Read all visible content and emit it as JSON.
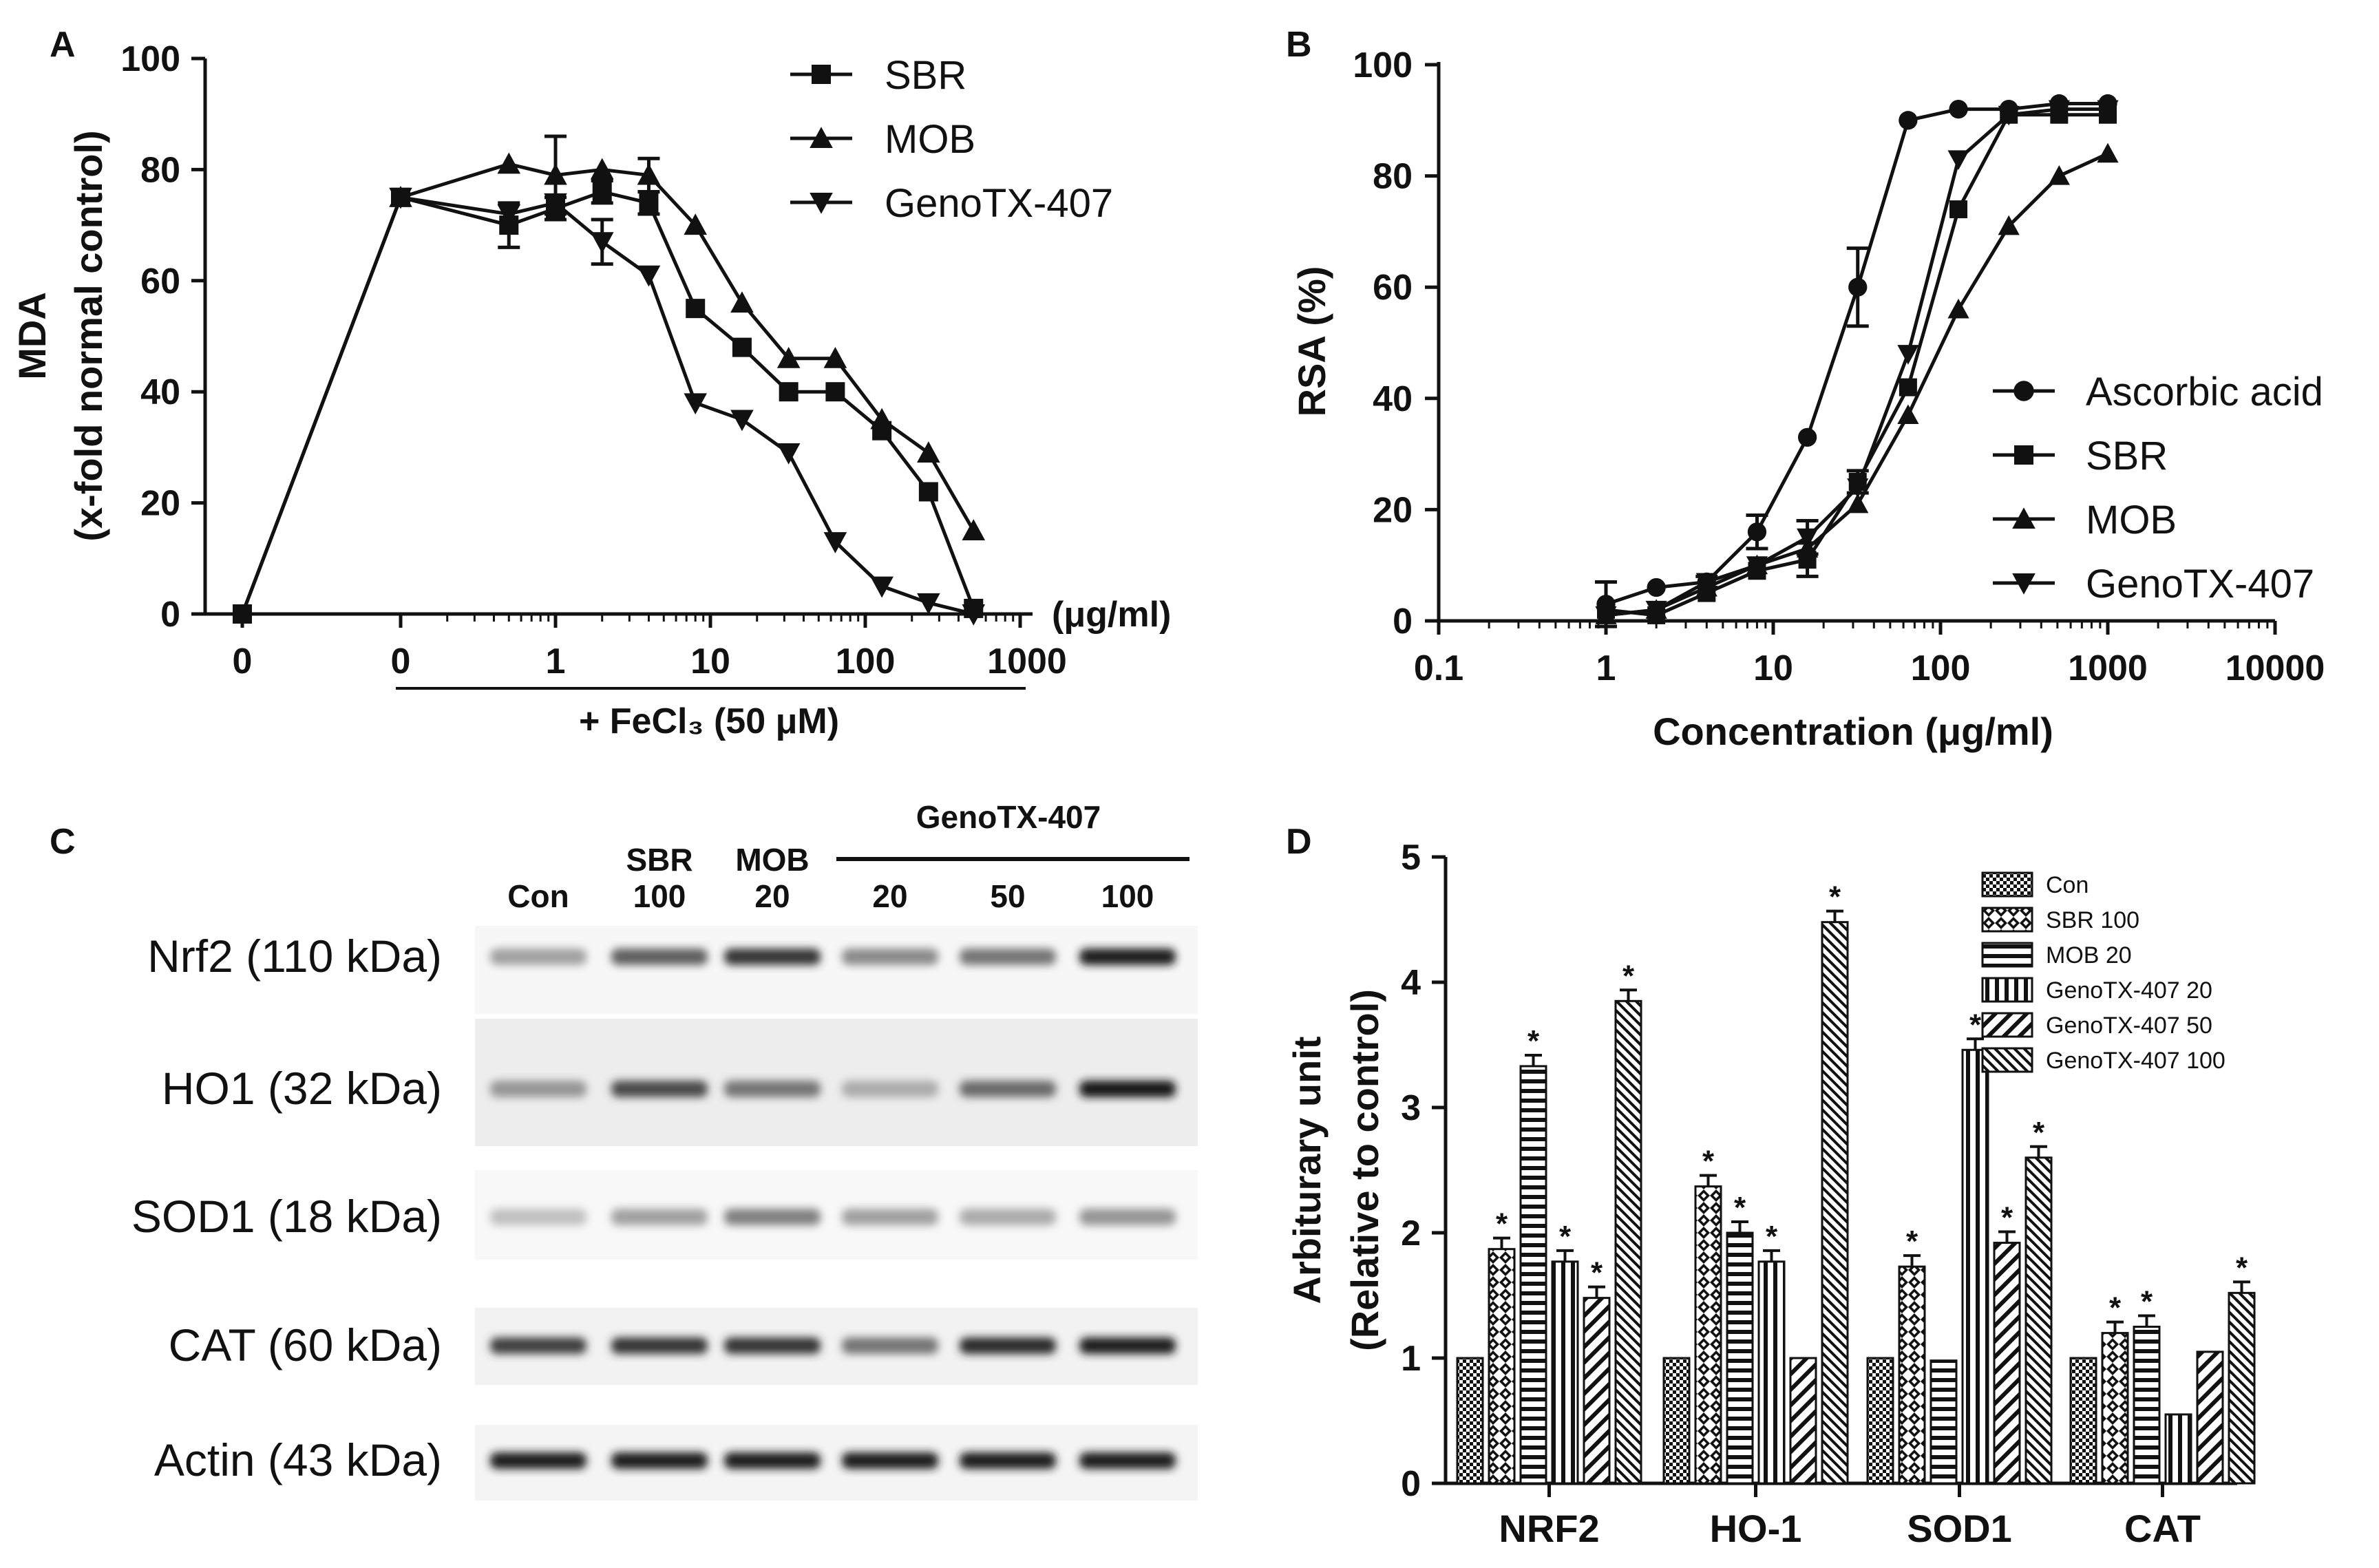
{
  "panels": {
    "A": {
      "letter": "A"
    },
    "B": {
      "letter": "B"
    },
    "C": {
      "letter": "C"
    },
    "D": {
      "letter": "D"
    }
  },
  "chart_data": [
    {
      "id": "A",
      "type": "line",
      "ylabel_line1": "MDA",
      "ylabel_line2": "(x-fold normal control)",
      "yticks": [
        "0",
        "20",
        "40",
        "60",
        "80",
        "100"
      ],
      "ylim": [
        0,
        100
      ],
      "x_unit": "(μg/ml)",
      "x_first_tick": "0",
      "x_log_ticks": [
        "0",
        "1",
        "10",
        "100",
        "1000"
      ],
      "bracket_label": "+ FeCl₃ (50 μM)",
      "control_point": {
        "x": "0",
        "y": 0
      },
      "series": [
        {
          "name": "SBR",
          "marker": "square",
          "x": [
            0.1,
            0.5,
            1,
            2,
            4,
            8,
            16,
            32,
            64,
            128,
            256,
            500
          ],
          "y": [
            75,
            70,
            73,
            76,
            74,
            55,
            48,
            40,
            40,
            33,
            22,
            1
          ],
          "err": [
            0,
            4,
            2,
            2,
            2,
            0,
            0,
            0,
            0,
            0,
            0,
            0
          ]
        },
        {
          "name": "MOB",
          "marker": "triangle-up",
          "x": [
            0.1,
            0.5,
            1,
            2,
            4,
            8,
            16,
            32,
            64,
            128,
            256,
            500
          ],
          "y": [
            75,
            81,
            79,
            80,
            79,
            70,
            56,
            46,
            46,
            35,
            29,
            15
          ],
          "err": [
            0,
            0,
            7,
            0,
            3,
            0,
            0,
            0,
            0,
            0,
            0,
            0
          ]
        },
        {
          "name": "GenoTX-407",
          "marker": "triangle-down",
          "x": [
            0.1,
            0.5,
            1,
            2,
            4,
            8,
            16,
            32,
            64,
            128,
            256,
            500
          ],
          "y": [
            75,
            72,
            74,
            67,
            61,
            38,
            35,
            29,
            13,
            5,
            2,
            0
          ],
          "err": [
            0,
            0,
            0,
            4,
            0,
            0,
            0,
            0,
            0,
            0,
            0,
            0
          ]
        }
      ]
    },
    {
      "id": "B",
      "type": "line",
      "ylabel": "RSA (%)",
      "xlabel": "Concentration (μg/ml)",
      "yticks": [
        "0",
        "20",
        "40",
        "60",
        "80",
        "100"
      ],
      "xticks": [
        "0.1",
        "1",
        "10",
        "100",
        "1000",
        "10000"
      ],
      "ylim": [
        0,
        100
      ],
      "xlim": [
        0.1,
        10000
      ],
      "xscale": "log",
      "series": [
        {
          "name": "Ascorbic acid",
          "marker": "circle",
          "x": [
            1,
            2,
            4,
            8,
            16,
            32,
            64,
            128,
            256,
            512,
            1000
          ],
          "y": [
            3,
            6,
            7,
            16,
            33,
            60,
            90,
            92,
            92,
            93,
            93
          ],
          "err": [
            4,
            0,
            1,
            3,
            0,
            7,
            0,
            0,
            0,
            0,
            0
          ]
        },
        {
          "name": "SBR",
          "marker": "square",
          "x": [
            1,
            2,
            4,
            8,
            16,
            32,
            64,
            128,
            256,
            512,
            1000
          ],
          "y": [
            2,
            1,
            5,
            9,
            11,
            25,
            42,
            74,
            91,
            91,
            91
          ],
          "err": [
            0,
            0,
            0,
            0,
            3,
            2,
            0,
            0,
            0,
            0,
            0
          ]
        },
        {
          "name": "MOB",
          "marker": "triangle-up",
          "x": [
            1,
            2,
            4,
            8,
            16,
            32,
            64,
            128,
            256,
            512,
            1000
          ],
          "y": [
            1,
            2,
            6,
            10,
            13,
            21,
            37,
            56,
            71,
            80,
            84
          ],
          "err": [
            0,
            0,
            0,
            0,
            0,
            0,
            0,
            0,
            0,
            0,
            0
          ]
        },
        {
          "name": "GenoTX-407",
          "marker": "triangle-down",
          "x": [
            1,
            2,
            4,
            8,
            16,
            32,
            64,
            128,
            256,
            512,
            1000
          ],
          "y": [
            1,
            2,
            7,
            10,
            15,
            24,
            48,
            83,
            91,
            92,
            92
          ],
          "err": [
            0,
            0,
            0,
            0,
            3,
            0,
            0,
            0,
            0,
            0,
            0
          ]
        }
      ]
    },
    {
      "id": "D",
      "type": "bar",
      "ylabel_line1": "Arbiturary unit",
      "ylabel_line2": "(Relative to control)",
      "yticks": [
        "0",
        "1",
        "2",
        "3",
        "4",
        "5"
      ],
      "ylim": [
        0,
        5
      ],
      "categories": [
        "NRF2",
        "HO-1",
        "SOD1",
        "CAT"
      ],
      "significance_mark": "*",
      "series": [
        {
          "name": "Con",
          "pattern": "checker",
          "values": [
            1.0,
            1.0,
            1.0,
            1.0
          ],
          "sig": [
            false,
            false,
            false,
            false
          ]
        },
        {
          "name": "SBR 100",
          "pattern": "diamond",
          "values": [
            1.87,
            2.37,
            1.73,
            1.2
          ],
          "sig": [
            true,
            true,
            true,
            true
          ]
        },
        {
          "name": "MOB 20",
          "pattern": "hlines",
          "values": [
            3.33,
            2.0,
            0.98,
            1.25
          ],
          "sig": [
            true,
            true,
            false,
            true
          ]
        },
        {
          "name": "GenoTX-407 20",
          "pattern": "vlines",
          "values": [
            1.77,
            1.77,
            3.46,
            0.55
          ],
          "sig": [
            true,
            true,
            true,
            false
          ]
        },
        {
          "name": "GenoTX-407 50",
          "pattern": "diag",
          "values": [
            1.48,
            1.0,
            1.92,
            1.05
          ],
          "sig": [
            true,
            false,
            true,
            false
          ]
        },
        {
          "name": "GenoTX-407 100",
          "pattern": "diag-dense",
          "values": [
            3.85,
            4.48,
            2.6,
            1.52
          ],
          "sig": [
            true,
            true,
            true,
            true
          ]
        }
      ]
    }
  ],
  "blot": {
    "group_label": "GenoTX-407",
    "lanes": [
      {
        "top": "",
        "bottom": "Con"
      },
      {
        "top": "SBR",
        "bottom": "100"
      },
      {
        "top": "MOB",
        "bottom": "20"
      },
      {
        "top": "",
        "bottom": "20"
      },
      {
        "top": "",
        "bottom": "50"
      },
      {
        "top": "",
        "bottom": "100"
      }
    ],
    "rows": [
      {
        "label": "Nrf2 (110 kDa)",
        "intensity": [
          0.35,
          0.65,
          0.85,
          0.45,
          0.55,
          0.95
        ]
      },
      {
        "label": "HO1 (32 kDa)",
        "intensity": [
          0.4,
          0.75,
          0.55,
          0.3,
          0.6,
          1.0
        ]
      },
      {
        "label": "SOD1 (18 kDa)",
        "intensity": [
          0.2,
          0.35,
          0.5,
          0.35,
          0.3,
          0.4
        ]
      },
      {
        "label": "CAT (60 kDa)",
        "intensity": [
          0.8,
          0.85,
          0.85,
          0.55,
          0.9,
          0.95
        ]
      },
      {
        "label": "Actin (43 kDa)",
        "intensity": [
          0.95,
          0.95,
          0.95,
          0.95,
          0.95,
          0.95
        ]
      }
    ]
  }
}
